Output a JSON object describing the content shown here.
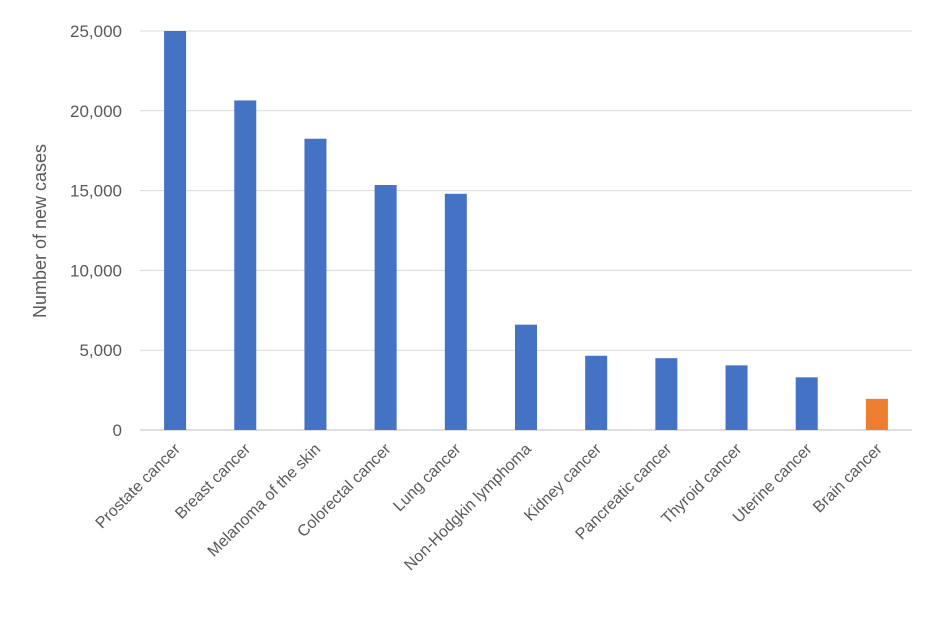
{
  "chart_data": {
    "type": "bar",
    "title": "",
    "xlabel": "",
    "ylabel": "Number of new cases",
    "ylim": [
      0,
      25000
    ],
    "yticks": [
      0,
      5000,
      10000,
      15000,
      20000,
      25000
    ],
    "ytick_labels": [
      "0",
      "5,000",
      "10,000",
      "15,000",
      "20,000",
      "25,000"
    ],
    "grid": true,
    "legend": "none",
    "categories": [
      "Prostate cancer",
      "Breast cancer",
      "Melanoma of the skin",
      "Colorectal cancer",
      "Lung cancer",
      "Non-Hodgkin lymphoma",
      "Kidney cancer",
      "Pancreatic cancer",
      "Thyroid cancer",
      "Uterine cancer",
      "Brain cancer"
    ],
    "values": [
      25000,
      20650,
      18250,
      15350,
      14800,
      6600,
      4650,
      4500,
      4050,
      3300,
      1950
    ],
    "colors": {
      "default": "#4472c4",
      "highlight": "#ed7d31"
    },
    "highlight_category": "Brain cancer"
  }
}
